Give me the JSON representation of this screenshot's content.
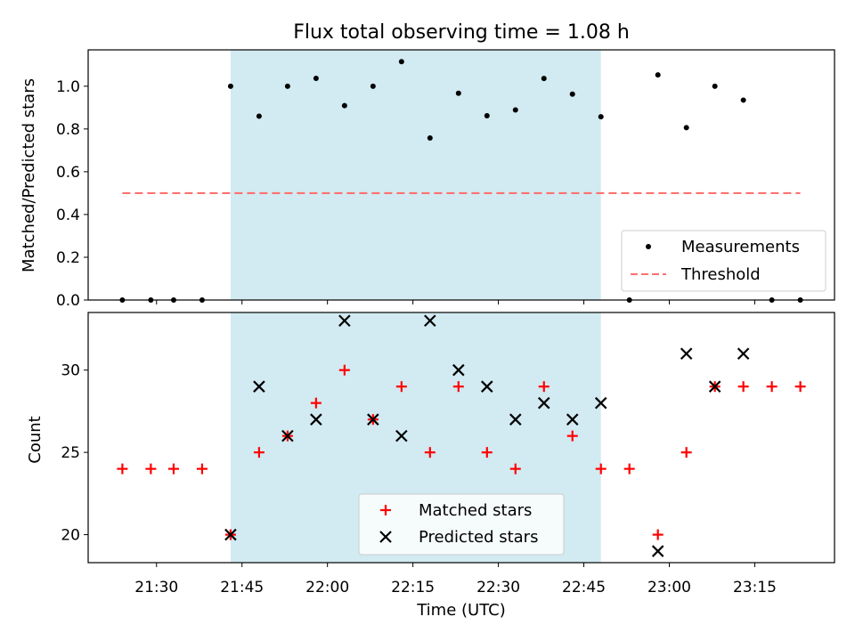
{
  "chart_data": [
    {
      "type": "scatter",
      "title": "Flux total observing time = 1.08 h",
      "ylabel": "Matched/Predicted stars",
      "xlabel": "",
      "ylim": [
        0,
        1.17
      ],
      "yticks": [
        "0.0",
        "0.2",
        "0.4",
        "0.6",
        "0.8",
        "1.0"
      ],
      "grid": false,
      "legend_position": "lower-right",
      "highlight_span": [
        "21:43",
        "22:48"
      ],
      "highlight_color": "#add8e6",
      "series": [
        {
          "name": "Measurements",
          "marker": "dot",
          "color": "#000000",
          "x": [
            "21:24",
            "21:29",
            "21:33",
            "21:38",
            "21:43",
            "21:48",
            "21:53",
            "21:58",
            "22:03",
            "22:08",
            "22:13",
            "22:18",
            "22:23",
            "22:28",
            "22:33",
            "22:38",
            "22:43",
            "22:48",
            "22:53",
            "22:58",
            "23:03",
            "23:08",
            "23:13",
            "23:18",
            "23:23"
          ],
          "values": [
            0,
            0,
            0,
            0,
            1.0,
            0.86,
            1.0,
            1.037,
            0.909,
            1.0,
            1.115,
            0.758,
            0.967,
            0.862,
            0.889,
            1.036,
            0.963,
            0.857,
            0,
            1.053,
            0.806,
            1.0,
            0.935,
            0,
            0
          ]
        },
        {
          "name": "Threshold",
          "marker": "dashed-line",
          "color": "#ff7070",
          "x": [
            "21:24",
            "23:23"
          ],
          "values": [
            0.5,
            0.5
          ]
        }
      ]
    },
    {
      "type": "scatter",
      "title": "",
      "ylabel": "Count",
      "xlabel": "Time (UTC)",
      "ylim": [
        18.3,
        33.5
      ],
      "yticks": [
        "20",
        "25",
        "30"
      ],
      "xticks": [
        "21:30",
        "21:45",
        "22:00",
        "22:15",
        "22:30",
        "22:45",
        "23:00",
        "23:15"
      ],
      "grid": false,
      "legend_position": "lower-center",
      "highlight_span": [
        "21:43",
        "22:48"
      ],
      "series": [
        {
          "name": "Matched stars",
          "marker": "plus",
          "color": "#ff0000",
          "x": [
            "21:24",
            "21:29",
            "21:33",
            "21:38",
            "21:43",
            "21:48",
            "21:53",
            "21:58",
            "22:03",
            "22:08",
            "22:13",
            "22:18",
            "22:23",
            "22:28",
            "22:33",
            "22:38",
            "22:43",
            "22:48",
            "22:53",
            "22:58",
            "23:03",
            "23:08",
            "23:13",
            "23:18",
            "23:23"
          ],
          "values": [
            24,
            24,
            24,
            24,
            20,
            25,
            26,
            28,
            30,
            27,
            29,
            25,
            29,
            25,
            24,
            29,
            26,
            24,
            24,
            20,
            25,
            29,
            29,
            29,
            29
          ]
        },
        {
          "name": "Predicted stars",
          "marker": "x",
          "color": "#000000",
          "x": [
            "21:43",
            "21:48",
            "21:53",
            "21:58",
            "22:03",
            "22:08",
            "22:13",
            "22:18",
            "22:23",
            "22:28",
            "22:33",
            "22:38",
            "22:43",
            "22:48",
            "22:58",
            "23:03",
            "23:08",
            "23:13"
          ],
          "values": [
            20,
            29,
            26,
            27,
            33,
            27,
            26,
            33,
            30,
            29,
            27,
            28,
            27,
            28,
            19,
            31,
            29,
            31
          ]
        }
      ]
    }
  ]
}
